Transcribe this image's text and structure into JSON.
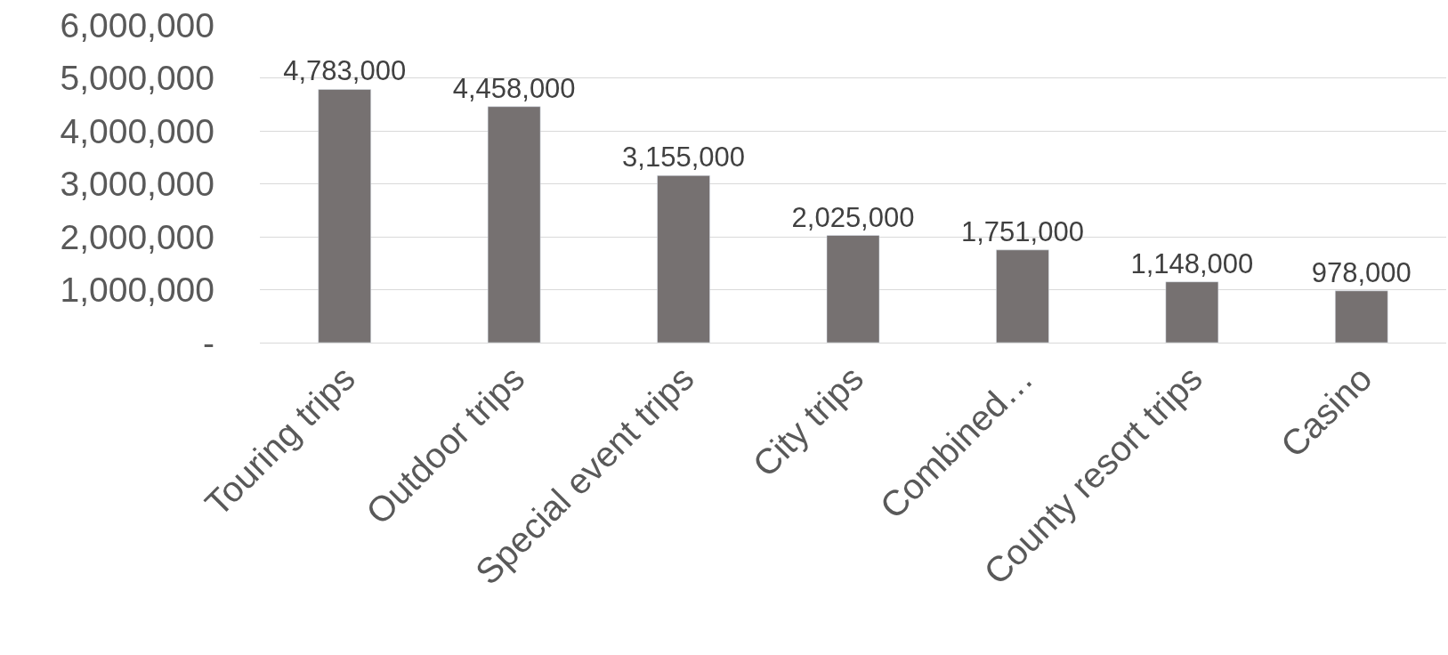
{
  "chart_data": {
    "type": "bar",
    "categories": [
      "Touring trips",
      "Outdoor trips",
      "Special event trips",
      "City trips",
      "Combined…",
      "County resort trips",
      "Casino"
    ],
    "values": [
      4783000,
      4458000,
      3155000,
      2025000,
      1751000,
      1148000,
      978000
    ],
    "value_labels": [
      "4,783,000",
      "4,458,000",
      "3,155,000",
      "2,025,000",
      "1,751,000",
      "1,148,000",
      "978,000"
    ],
    "color": "#767171",
    "ylim": [
      0,
      6000000
    ],
    "yticks": [
      {
        "value": 0,
        "label": "-"
      },
      {
        "value": 1000000,
        "label": "1,000,000"
      },
      {
        "value": 2000000,
        "label": "2,000,000"
      },
      {
        "value": 3000000,
        "label": "3,000,000"
      },
      {
        "value": 4000000,
        "label": "4,000,000"
      },
      {
        "value": 5000000,
        "label": "5,000,000"
      },
      {
        "value": 6000000,
        "label": "6,000,000"
      }
    ],
    "grid": "y",
    "legend": false
  }
}
